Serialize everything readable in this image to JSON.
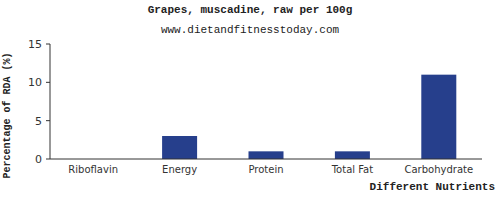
{
  "chart_data": {
    "type": "bar",
    "title": "Grapes, muscadine, raw per 100g",
    "subtitle": "www.dietandfitnesstoday.com",
    "x_label": "Different Nutrients",
    "y_label": "Percentage of RDA (%)",
    "categories": [
      "Riboflavin",
      "Energy",
      "Protein",
      "Total Fat",
      "Carbohydrate"
    ],
    "values": [
      0,
      3,
      1,
      1,
      11
    ],
    "color": "#263f8c",
    "ylim": [
      0,
      15
    ],
    "yticks": [
      0,
      5,
      10,
      15
    ],
    "grid": false
  }
}
